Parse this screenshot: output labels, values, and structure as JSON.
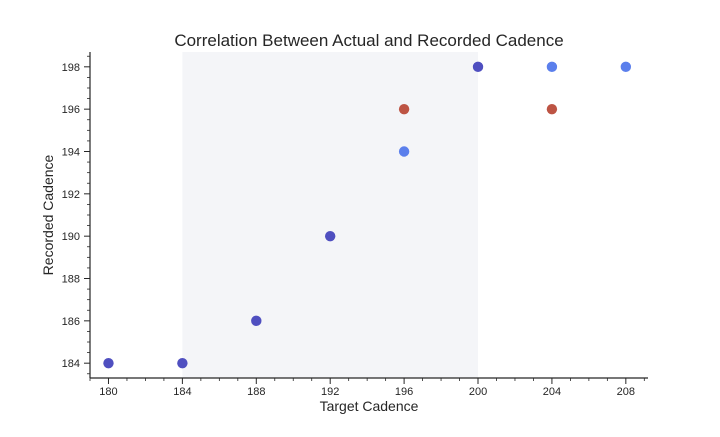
{
  "chart_data": {
    "type": "scatter",
    "title": "Correlation Between Actual and Recorded Cadence",
    "xlabel": "Target Cadence",
    "ylabel": "Recorded Cadence",
    "xlim": [
      179,
      209.2
    ],
    "ylim": [
      183.3,
      198.7
    ],
    "x_ticks": [
      180,
      184,
      188,
      192,
      196,
      200,
      204,
      208
    ],
    "y_ticks": [
      184,
      186,
      188,
      190,
      192,
      194,
      196,
      198
    ],
    "x_minor_step": 1,
    "y_minor_step": 0.5,
    "shaded_x_range": [
      184,
      200
    ],
    "colors": {
      "shade": "#f4f5f8",
      "axis": "#262626"
    },
    "points": [
      {
        "x": 180,
        "y": 184,
        "color": "#4f4fc0"
      },
      {
        "x": 184,
        "y": 184,
        "color": "#4f4fc0"
      },
      {
        "x": 188,
        "y": 186,
        "color": "#4f4fc0"
      },
      {
        "x": 192,
        "y": 190,
        "color": "#4f4fc0"
      },
      {
        "x": 196,
        "y": 194,
        "color": "#5b7fec"
      },
      {
        "x": 196,
        "y": 196,
        "color": "#bd5444"
      },
      {
        "x": 200,
        "y": 198,
        "color": "#4f4fc0"
      },
      {
        "x": 204,
        "y": 198,
        "color": "#5b7fec"
      },
      {
        "x": 204,
        "y": 196,
        "color": "#bd5444"
      },
      {
        "x": 208,
        "y": 198,
        "color": "#5b7fec"
      }
    ],
    "grid": false,
    "legend": null
  }
}
